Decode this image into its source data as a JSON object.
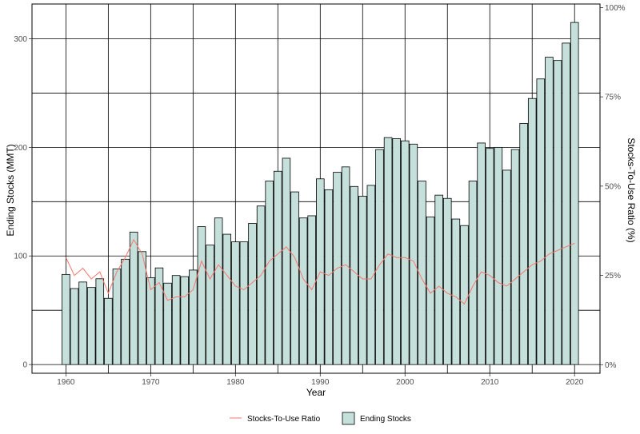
{
  "chart_data": {
    "type": "bar",
    "title": "",
    "xlabel": "Year",
    "ylabel": "Ending Stocks (MMT)",
    "y2label": "Stocks-To-Use Ratio (%)",
    "xlim": [
      1956,
      2023
    ],
    "ylim": [
      -8,
      332
    ],
    "y2lim": [
      -0.024,
      1.01
    ],
    "x_ticks": [
      1960,
      1970,
      1980,
      1990,
      2000,
      2010,
      2020
    ],
    "y_ticks": [
      0,
      100,
      200,
      300
    ],
    "y2_ticks": [
      {
        "value": 0,
        "label": "0%"
      },
      {
        "value": 0.25,
        "label": "25%"
      },
      {
        "value": 0.5,
        "label": "50%"
      },
      {
        "value": 0.75,
        "label": "75%"
      },
      {
        "value": 1.0,
        "label": "100%"
      }
    ],
    "years": [
      1960,
      1961,
      1962,
      1963,
      1964,
      1965,
      1966,
      1967,
      1968,
      1969,
      1970,
      1971,
      1972,
      1973,
      1974,
      1975,
      1976,
      1977,
      1978,
      1979,
      1980,
      1981,
      1982,
      1983,
      1984,
      1985,
      1986,
      1987,
      1988,
      1989,
      1990,
      1991,
      1992,
      1993,
      1994,
      1995,
      1996,
      1997,
      1998,
      1999,
      2000,
      2001,
      2002,
      2003,
      2004,
      2005,
      2006,
      2007,
      2008,
      2009,
      2010,
      2011,
      2012,
      2013,
      2014,
      2015,
      2016,
      2017,
      2018,
      2019,
      2020
    ],
    "series": [
      {
        "name": "Ending Stocks",
        "type": "bar",
        "axis": "left",
        "color": "#c5e0db",
        "stroke": "#000000",
        "values": [
          83,
          70,
          76,
          71,
          79,
          61,
          88,
          97,
          122,
          104,
          80,
          89,
          75,
          82,
          81,
          87,
          127,
          110,
          135,
          120,
          113,
          113,
          130,
          146,
          169,
          178,
          190,
          159,
          135,
          137,
          171,
          161,
          177,
          182,
          164,
          155,
          165,
          198,
          209,
          208,
          206,
          203,
          169,
          136,
          156,
          153,
          134,
          128,
          169,
          204,
          199,
          200,
          179,
          198,
          222,
          245,
          263,
          283,
          280,
          296,
          315
        ]
      },
      {
        "name": "Stocks-To-Use Ratio",
        "type": "line",
        "axis": "right",
        "color": "#f8766d",
        "values": [
          0.3,
          0.25,
          0.27,
          0.24,
          0.26,
          0.2,
          0.26,
          0.3,
          0.35,
          0.31,
          0.21,
          0.23,
          0.18,
          0.19,
          0.19,
          0.21,
          0.29,
          0.24,
          0.28,
          0.25,
          0.22,
          0.21,
          0.23,
          0.25,
          0.29,
          0.31,
          0.33,
          0.3,
          0.24,
          0.21,
          0.26,
          0.25,
          0.27,
          0.28,
          0.26,
          0.24,
          0.24,
          0.28,
          0.31,
          0.3,
          0.3,
          0.29,
          0.24,
          0.2,
          0.22,
          0.2,
          0.19,
          0.17,
          0.22,
          0.26,
          0.25,
          0.23,
          0.22,
          0.24,
          0.26,
          0.28,
          0.29,
          0.31,
          0.32,
          0.33,
          0.34
        ]
      }
    ],
    "legend": {
      "position": "bottom",
      "line_label": "Stocks-To-Use Ratio",
      "bar_label": "Ending Stocks"
    },
    "grid": true
  }
}
